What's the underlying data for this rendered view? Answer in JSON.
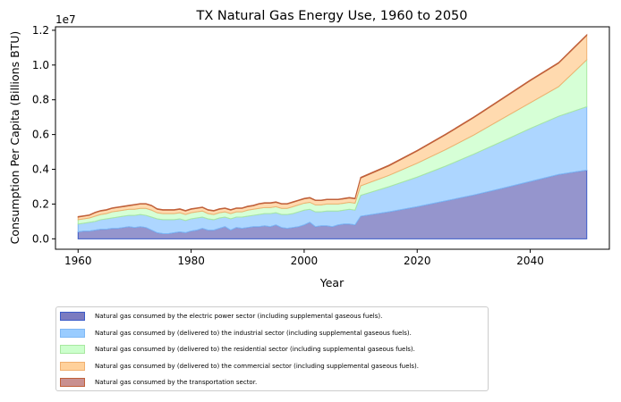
{
  "chart_data": {
    "type": "area",
    "stacked": true,
    "title": "TX Natural Gas Energy Use, 1960 to 2050",
    "xlabel": "Year",
    "ylabel": "Consumption Per Capita (Billions BTU)",
    "y_offset_label": "1e7",
    "xlim": [
      1956,
      2054
    ],
    "ylim": [
      -0.06,
      1.22
    ],
    "x_ticks": [
      1960,
      1980,
      2000,
      2020,
      2040
    ],
    "x_tick_labels": [
      "1960",
      "1980",
      "2000",
      "2020",
      "2040"
    ],
    "y_ticks": [
      0.0,
      0.2,
      0.4,
      0.6,
      0.8,
      1.0,
      1.2
    ],
    "y_tick_labels": [
      "0.0",
      "0.2",
      "0.4",
      "0.6",
      "0.8",
      "1.0",
      "1.2"
    ],
    "legend_position": "below",
    "x": [
      1960,
      1961,
      1962,
      1963,
      1964,
      1965,
      1966,
      1967,
      1968,
      1969,
      1970,
      1971,
      1972,
      1973,
      1974,
      1975,
      1976,
      1977,
      1978,
      1979,
      1980,
      1981,
      1982,
      1983,
      1984,
      1985,
      1986,
      1987,
      1988,
      1989,
      1990,
      1991,
      1992,
      1993,
      1994,
      1995,
      1996,
      1997,
      1998,
      1999,
      2000,
      2001,
      2002,
      2003,
      2004,
      2005,
      2006,
      2007,
      2008,
      2009,
      2010,
      2015,
      2020,
      2025,
      2030,
      2035,
      2040,
      2045,
      2050
    ],
    "series": [
      {
        "name": "Natural gas consumed by the electric power sector (including supplemental gaseous fuels).",
        "color": "#7b7bc0",
        "edge": "#3b5bc8",
        "values": [
          0.04,
          0.045,
          0.045,
          0.05,
          0.055,
          0.055,
          0.06,
          0.06,
          0.065,
          0.07,
          0.065,
          0.07,
          0.065,
          0.05,
          0.035,
          0.03,
          0.03,
          0.035,
          0.04,
          0.035,
          0.045,
          0.05,
          0.06,
          0.05,
          0.05,
          0.06,
          0.07,
          0.05,
          0.065,
          0.06,
          0.065,
          0.07,
          0.07,
          0.075,
          0.07,
          0.08,
          0.065,
          0.06,
          0.065,
          0.07,
          0.08,
          0.095,
          0.07,
          0.075,
          0.075,
          0.07,
          0.08,
          0.085,
          0.085,
          0.08,
          0.13,
          0.155,
          0.185,
          0.218,
          0.252,
          0.29,
          0.33,
          0.37,
          0.395
        ]
      },
      {
        "name": "Natural gas consumed by (delivered to) the industrial sector (including supplemental gaseous fuels).",
        "color": "#99ccff",
        "edge": "#7fb8f5",
        "values": [
          0.045,
          0.045,
          0.05,
          0.05,
          0.055,
          0.06,
          0.06,
          0.065,
          0.065,
          0.065,
          0.07,
          0.07,
          0.07,
          0.075,
          0.08,
          0.08,
          0.08,
          0.075,
          0.075,
          0.07,
          0.07,
          0.07,
          0.065,
          0.065,
          0.06,
          0.06,
          0.055,
          0.065,
          0.06,
          0.065,
          0.065,
          0.065,
          0.07,
          0.07,
          0.075,
          0.07,
          0.075,
          0.08,
          0.08,
          0.085,
          0.085,
          0.075,
          0.085,
          0.08,
          0.085,
          0.09,
          0.08,
          0.08,
          0.085,
          0.085,
          0.12,
          0.145,
          0.17,
          0.2,
          0.235,
          0.27,
          0.305,
          0.335,
          0.365
        ]
      },
      {
        "name": "Natural gas consumed by (delivered to) the residential sector (including supplemental gaseous fuels).",
        "color": "#ccffcc",
        "edge": "#a8e8a0",
        "values": [
          0.025,
          0.025,
          0.025,
          0.03,
          0.03,
          0.03,
          0.035,
          0.035,
          0.035,
          0.035,
          0.035,
          0.035,
          0.04,
          0.04,
          0.035,
          0.035,
          0.035,
          0.035,
          0.035,
          0.035,
          0.035,
          0.035,
          0.035,
          0.03,
          0.03,
          0.03,
          0.03,
          0.03,
          0.03,
          0.03,
          0.035,
          0.035,
          0.035,
          0.035,
          0.035,
          0.035,
          0.035,
          0.035,
          0.04,
          0.04,
          0.04,
          0.04,
          0.04,
          0.04,
          0.04,
          0.04,
          0.04,
          0.04,
          0.04,
          0.04,
          0.055,
          0.065,
          0.08,
          0.095,
          0.11,
          0.13,
          0.148,
          0.17,
          0.27
        ]
      },
      {
        "name": "Natural gas consumed by (delivered to) the commercial sector (including supplemental gaseous fuels).",
        "color": "#ffd19b",
        "edge": "#f0b070",
        "values": [
          0.015,
          0.015,
          0.015,
          0.02,
          0.02,
          0.02,
          0.02,
          0.02,
          0.02,
          0.02,
          0.025,
          0.025,
          0.025,
          0.025,
          0.02,
          0.02,
          0.02,
          0.02,
          0.02,
          0.02,
          0.02,
          0.02,
          0.02,
          0.02,
          0.02,
          0.02,
          0.02,
          0.02,
          0.02,
          0.02,
          0.02,
          0.02,
          0.025,
          0.025,
          0.025,
          0.025,
          0.025,
          0.025,
          0.025,
          0.025,
          0.025,
          0.025,
          0.025,
          0.025,
          0.025,
          0.025,
          0.025,
          0.025,
          0.025,
          0.025,
          0.045,
          0.055,
          0.07,
          0.085,
          0.1,
          0.113,
          0.127,
          0.135,
          0.14
        ]
      },
      {
        "name": "Natural gas consumed by the transportation sector.",
        "color": "#c99090",
        "edge": "#c0603a",
        "values": [
          0.003,
          0.003,
          0.003,
          0.003,
          0.003,
          0.003,
          0.003,
          0.003,
          0.003,
          0.003,
          0.003,
          0.003,
          0.003,
          0.003,
          0.003,
          0.003,
          0.003,
          0.003,
          0.003,
          0.003,
          0.003,
          0.003,
          0.003,
          0.003,
          0.003,
          0.003,
          0.003,
          0.003,
          0.003,
          0.003,
          0.003,
          0.003,
          0.003,
          0.003,
          0.003,
          0.003,
          0.003,
          0.003,
          0.003,
          0.003,
          0.003,
          0.003,
          0.003,
          0.003,
          0.003,
          0.003,
          0.003,
          0.003,
          0.003,
          0.003,
          0.004,
          0.004,
          0.004,
          0.004,
          0.004,
          0.004,
          0.004,
          0.004,
          0.004
        ]
      }
    ]
  }
}
